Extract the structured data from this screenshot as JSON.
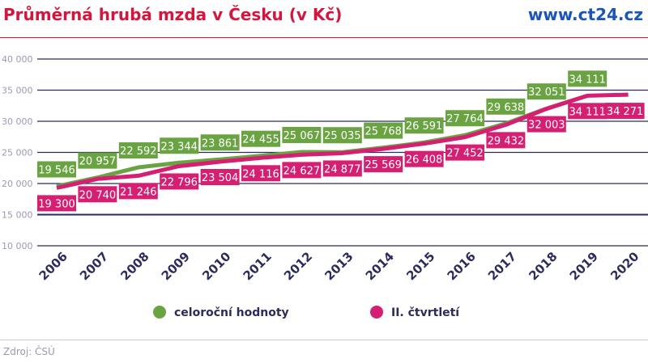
{
  "header": {
    "title": "Průměrná hrubá mzda v Česku (v Kč)",
    "site": "www.ct24.cz"
  },
  "footer": {
    "source": "Zdroj: ČSÚ"
  },
  "chart_data": {
    "type": "line",
    "title": "Průměrná hrubá mzda v Česku (v Kč)",
    "categories": [
      "2006",
      "2007",
      "2008",
      "2009",
      "2010",
      "2011",
      "2012",
      "2013",
      "2014",
      "2015",
      "2016",
      "2017",
      "2018",
      "2019",
      "2020"
    ],
    "ylim": [
      10000,
      40000
    ],
    "yticks": [
      10000,
      15000,
      20000,
      25000,
      30000,
      35000,
      40000
    ],
    "ytick_labels": [
      "10 000",
      "15 000",
      "20 000",
      "25 000",
      "30 000",
      "35 000",
      "40 000"
    ],
    "grid": true,
    "legend": "bottom",
    "series": [
      {
        "name": "celoroční hodnoty",
        "color": "#6aa442",
        "values": [
          19546,
          20957,
          22592,
          23344,
          23861,
          24455,
          25067,
          25035,
          25768,
          26591,
          27764,
          29638,
          32051,
          34111,
          null
        ],
        "labels": [
          "19 546",
          "20 957",
          "22 592",
          "23 344",
          "23 861",
          "24 455",
          "25 067",
          "25 035",
          "25 768",
          "26 591",
          "27 764",
          "29 638",
          "32 051",
          "34 111",
          null
        ]
      },
      {
        "name": "II. čtvrtletí",
        "color": "#d41f73",
        "values": [
          19300,
          20740,
          21246,
          22796,
          23504,
          24116,
          24627,
          24877,
          25569,
          26408,
          27452,
          29432,
          32003,
          34111,
          34271
        ],
        "labels": [
          "19 300",
          "20 740",
          "21 246",
          "22 796",
          "23 504",
          "24 116",
          "24 627",
          "24 877",
          "25 569",
          "26 408",
          "27 452",
          "29 432",
          "32 003",
          "34 111",
          "34 271"
        ]
      }
    ]
  }
}
